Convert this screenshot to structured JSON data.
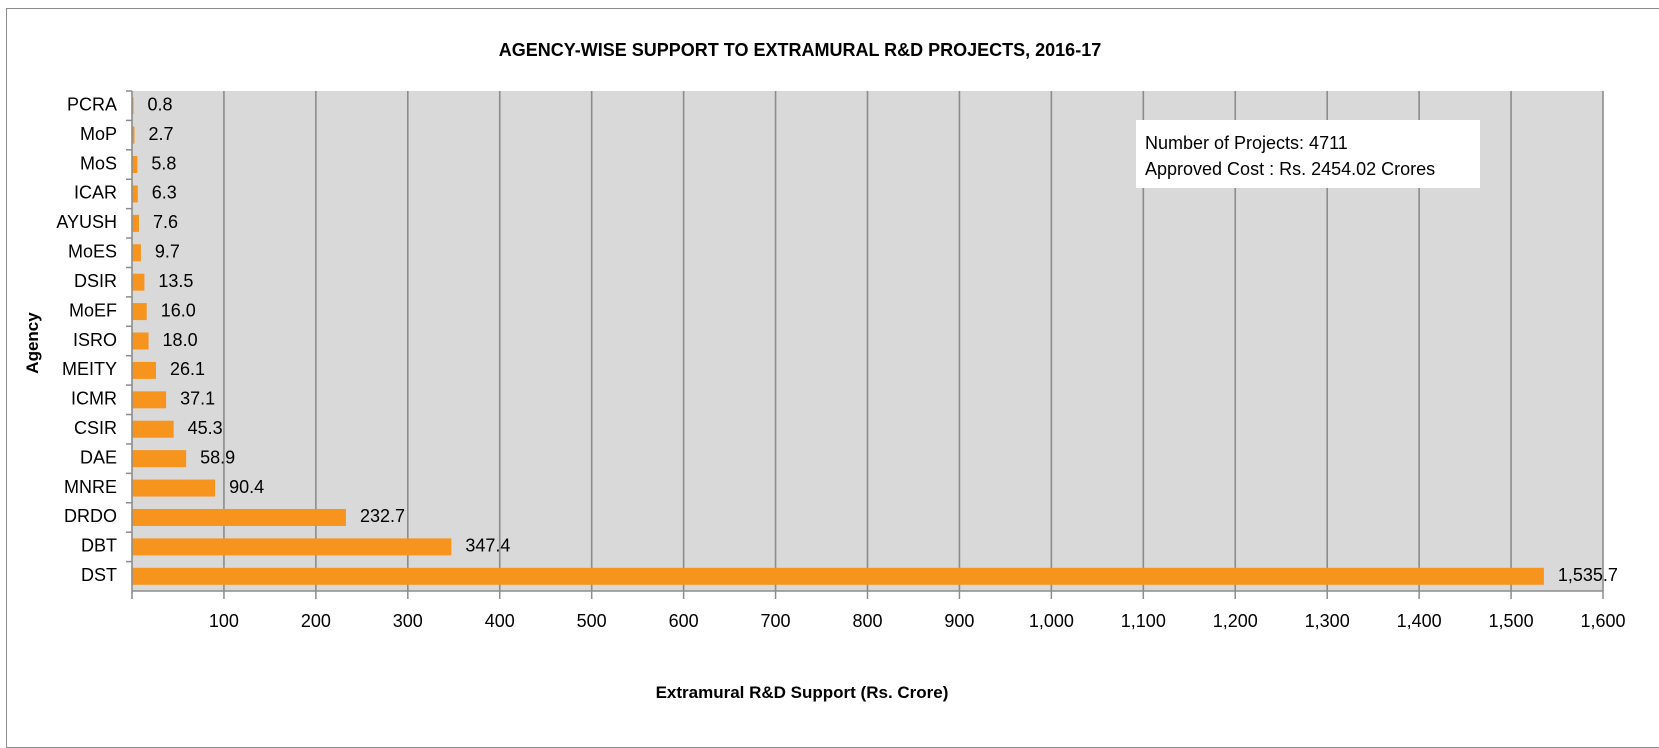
{
  "chart_data": {
    "type": "bar",
    "orientation": "horizontal",
    "title": "AGENCY-WISE SUPPORT TO EXTRAMURAL R&D PROJECTS, 2016-17",
    "xlabel": "Extramural R&D Support (Rs. Crore)",
    "ylabel": "Agency",
    "categories": [
      "PCRA",
      "MoP",
      "MoS",
      "ICAR",
      "AYUSH",
      "MoES",
      "DSIR",
      "MoEF",
      "ISRO",
      "MEITY",
      "ICMR",
      "CSIR",
      "DAE",
      "MNRE",
      "DRDO",
      "DBT",
      "DST"
    ],
    "values": [
      0.8,
      2.7,
      5.8,
      6.3,
      7.6,
      9.7,
      13.5,
      16.0,
      18.0,
      26.1,
      37.1,
      45.3,
      58.9,
      90.4,
      232.7,
      347.4,
      1535.7
    ],
    "value_labels": [
      "0.8",
      "2.7",
      "5.8",
      "6.3",
      "7.6",
      "9.7",
      "13.5",
      "16.0",
      "18.0",
      "26.1",
      "37.1",
      "45.3",
      "58.9",
      "90.4",
      "232.7",
      "347.4",
      "1,535.7"
    ],
    "x_ticks": [
      100,
      200,
      300,
      400,
      500,
      600,
      700,
      800,
      900,
      1000,
      1100,
      1200,
      1300,
      1400,
      1500,
      1600
    ],
    "x_tick_labels": [
      "100",
      "200",
      "300",
      "400",
      "500",
      "600",
      "700",
      "800",
      "900",
      "1,000",
      "1,100",
      "1,200",
      "1,300",
      "1,400",
      "1,500",
      "1,600"
    ],
    "xlim": [
      0,
      1600
    ],
    "grid": true,
    "colors": {
      "bar": "#f7941d",
      "plot_bg": "#d9d9d9",
      "gridline": "#8c8c8c"
    },
    "annotation": {
      "lines": [
        "Number of Projects: 4711",
        "Approved Cost : Rs. 2454.02 Crores"
      ],
      "placement": "top-right"
    }
  }
}
